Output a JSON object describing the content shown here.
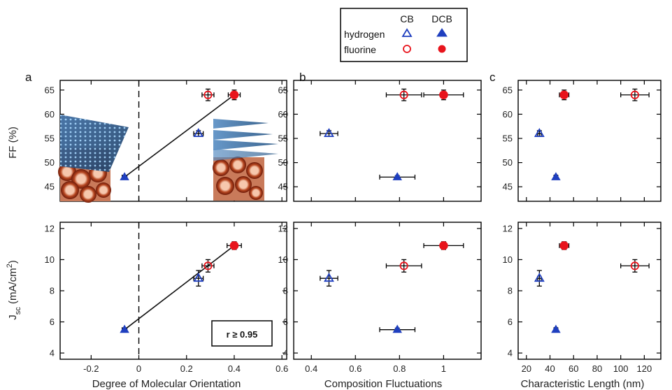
{
  "legend": {
    "col_headers": [
      "CB",
      "DCB"
    ],
    "rows": [
      {
        "label": "hydrogen",
        "color": "#1f3fbf"
      },
      {
        "label": "fluorine",
        "color": "#e8141c"
      }
    ]
  },
  "colors": {
    "hydrogen": "#1f3fbf",
    "fluorine": "#e8141c",
    "fit_line": "#111111"
  },
  "panels": [
    {
      "letter": "a"
    },
    {
      "letter": "b"
    },
    {
      "letter": "c"
    }
  ],
  "annotation": {
    "text": "r ≥ 0.95"
  },
  "chart_data": [
    {
      "type": "scatter",
      "id": "a-ff",
      "panel": "a",
      "row": "top",
      "xlabel": "",
      "ylabel": "FF (%)",
      "xlim": [
        -0.33,
        0.62
      ],
      "ylim": [
        42,
        67
      ],
      "xticks": [],
      "yticks": [
        45,
        50,
        55,
        60,
        65
      ],
      "zero_line": true,
      "fit_line": [
        [
          -0.06,
          47
        ],
        [
          0.4,
          64
        ]
      ],
      "series": [
        {
          "id": "h-cb",
          "points": [
            {
              "x": 0.25,
              "y": 56,
              "xerr": 0.02,
              "yerr": 0.6
            }
          ]
        },
        {
          "id": "h-dcb",
          "points": [
            {
              "x": -0.06,
              "y": 47,
              "xerr": 0.01,
              "yerr": 0.3
            }
          ]
        },
        {
          "id": "f-cb",
          "points": [
            {
              "x": 0.29,
              "y": 64,
              "xerr": 0.025,
              "yerr": 1.2
            }
          ]
        },
        {
          "id": "f-dcb",
          "points": [
            {
              "x": 0.4,
              "y": 64,
              "xerr": 0.025,
              "yerr": 1.0
            }
          ]
        }
      ]
    },
    {
      "type": "scatter",
      "id": "a-jsc",
      "panel": "a",
      "row": "bottom",
      "xlabel": "Degree of Molecular Orientation",
      "ylabel": "J",
      "ylabel_sub": "sc",
      "ylabel_rest": " (mA/cm",
      "ylabel_sup": "2",
      "ylabel_end": ")",
      "xlim": [
        -0.33,
        0.62
      ],
      "ylim": [
        3.6,
        12.4
      ],
      "xticks": [
        -0.2,
        0.0,
        0.2,
        0.4,
        0.6
      ],
      "yticks": [
        4,
        6,
        8,
        10,
        12
      ],
      "zero_line": true,
      "fit_line": [
        [
          -0.06,
          5.5
        ],
        [
          0.4,
          10.9
        ]
      ],
      "series": [
        {
          "id": "h-cb",
          "points": [
            {
              "x": 0.25,
              "y": 8.8,
              "xerr": 0.02,
              "yerr": 0.5
            }
          ]
        },
        {
          "id": "h-dcb",
          "points": [
            {
              "x": -0.06,
              "y": 5.5,
              "xerr": 0.01,
              "yerr": 0.1
            }
          ]
        },
        {
          "id": "f-cb",
          "points": [
            {
              "x": 0.29,
              "y": 9.6,
              "xerr": 0.025,
              "yerr": 0.4
            }
          ]
        },
        {
          "id": "f-dcb",
          "points": [
            {
              "x": 0.4,
              "y": 10.9,
              "xerr": 0.03,
              "yerr": 0.25
            }
          ]
        }
      ]
    },
    {
      "type": "scatter",
      "id": "b-ff",
      "panel": "b",
      "row": "top",
      "xlabel": "",
      "ylabel": "",
      "xlim": [
        0.32,
        1.17
      ],
      "ylim": [
        42,
        67
      ],
      "xticks": [],
      "yticks": [
        45,
        50,
        55,
        60,
        65
      ],
      "zero_line": false,
      "series": [
        {
          "id": "h-cb",
          "points": [
            {
              "x": 0.48,
              "y": 56,
              "xerr": 0.04,
              "yerr": 0.6
            }
          ]
        },
        {
          "id": "h-dcb",
          "points": [
            {
              "x": 0.79,
              "y": 47,
              "xerr": 0.08,
              "yerr": 0.3
            }
          ]
        },
        {
          "id": "f-cb",
          "points": [
            {
              "x": 0.82,
              "y": 64,
              "xerr": 0.08,
              "yerr": 1.2
            }
          ]
        },
        {
          "id": "f-dcb",
          "points": [
            {
              "x": 1.0,
              "y": 64,
              "xerr": 0.09,
              "yerr": 1.0
            }
          ]
        }
      ]
    },
    {
      "type": "scatter",
      "id": "b-jsc",
      "panel": "b",
      "row": "bottom",
      "xlabel": "Composition Fluctuations",
      "ylabel": "",
      "xlim": [
        0.32,
        1.17
      ],
      "ylim": [
        3.6,
        12.4
      ],
      "xticks": [
        0.4,
        0.6,
        0.8,
        1.0
      ],
      "yticks": [
        4,
        6,
        8,
        10,
        12
      ],
      "zero_line": false,
      "series": [
        {
          "id": "h-cb",
          "points": [
            {
              "x": 0.48,
              "y": 8.8,
              "xerr": 0.04,
              "yerr": 0.5
            }
          ]
        },
        {
          "id": "h-dcb",
          "points": [
            {
              "x": 0.79,
              "y": 5.5,
              "xerr": 0.08,
              "yerr": 0.1
            }
          ]
        },
        {
          "id": "f-cb",
          "points": [
            {
              "x": 0.82,
              "y": 9.6,
              "xerr": 0.08,
              "yerr": 0.4
            }
          ]
        },
        {
          "id": "f-dcb",
          "points": [
            {
              "x": 1.0,
              "y": 10.9,
              "xerr": 0.09,
              "yerr": 0.25
            }
          ]
        }
      ]
    },
    {
      "type": "scatter",
      "id": "c-ff",
      "panel": "c",
      "row": "top",
      "xlabel": "",
      "ylabel": "",
      "xlim": [
        13,
        134
      ],
      "ylim": [
        42,
        67
      ],
      "xticks": [],
      "yticks": [
        45,
        50,
        55,
        60,
        65
      ],
      "zero_line": false,
      "series": [
        {
          "id": "h-cb",
          "points": [
            {
              "x": 31,
              "y": 56,
              "xerr": 1.5,
              "yerr": 0.6
            }
          ]
        },
        {
          "id": "h-dcb",
          "points": [
            {
              "x": 45,
              "y": 47,
              "xerr": 1.5,
              "yerr": 0.3
            }
          ]
        },
        {
          "id": "f-cb",
          "points": [
            {
              "x": 112,
              "y": 64,
              "xerr": 12,
              "yerr": 1.2
            }
          ]
        },
        {
          "id": "f-dcb",
          "points": [
            {
              "x": 52,
              "y": 64,
              "xerr": 4,
              "yerr": 1.0
            }
          ]
        }
      ]
    },
    {
      "type": "scatter",
      "id": "c-jsc",
      "panel": "c",
      "row": "bottom",
      "xlabel": "Characteristic Length (nm)",
      "ylabel": "",
      "xlim": [
        13,
        134
      ],
      "ylim": [
        3.6,
        12.4
      ],
      "xticks": [
        20,
        40,
        60,
        80,
        100,
        120
      ],
      "yticks": [
        4,
        6,
        8,
        10,
        12
      ],
      "zero_line": false,
      "series": [
        {
          "id": "h-cb",
          "points": [
            {
              "x": 31,
              "y": 8.8,
              "xerr": 1.5,
              "yerr": 0.5
            }
          ]
        },
        {
          "id": "h-dcb",
          "points": [
            {
              "x": 45,
              "y": 5.5,
              "xerr": 1.5,
              "yerr": 0.1
            }
          ]
        },
        {
          "id": "f-cb",
          "points": [
            {
              "x": 112,
              "y": 9.6,
              "xerr": 12,
              "yerr": 0.4
            }
          ]
        },
        {
          "id": "f-dcb",
          "points": [
            {
              "x": 52,
              "y": 10.9,
              "xerr": 4,
              "yerr": 0.25
            }
          ]
        }
      ]
    }
  ]
}
